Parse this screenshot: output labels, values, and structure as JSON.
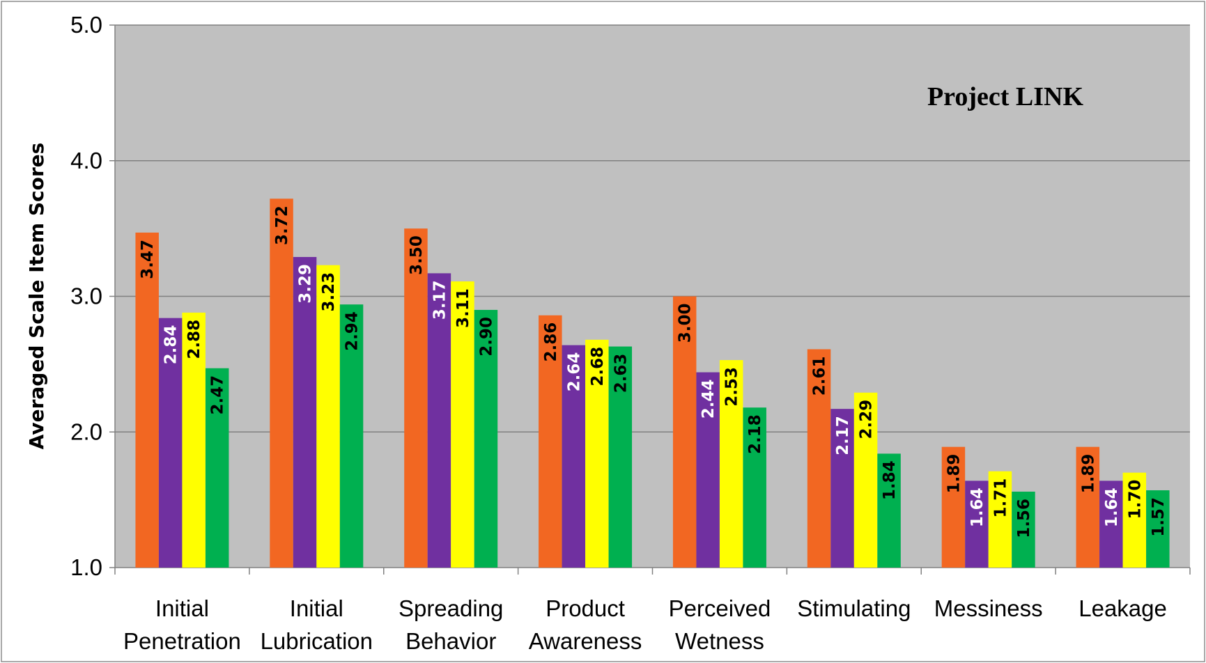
{
  "chart_data": {
    "type": "bar",
    "title": "Project LINK",
    "ylabel": "Averaged Scale Item Scores",
    "xlabel": "",
    "ylim": [
      1.0,
      5.0
    ],
    "yticks": [
      "1.0",
      "2.0",
      "3.0",
      "4.0",
      "5.0"
    ],
    "grid": true,
    "legend": "none",
    "categories": [
      [
        "Initial",
        "Penetration"
      ],
      [
        "Initial",
        "Lubrication"
      ],
      [
        "Spreading",
        "Behavior"
      ],
      [
        "Product",
        "Awareness"
      ],
      [
        "Perceived",
        "Wetness"
      ],
      [
        "Stimulating"
      ],
      [
        "Messiness"
      ],
      [
        "Leakage"
      ]
    ],
    "series": [
      {
        "color": "#F26722",
        "label_color": "#000000",
        "values": [
          3.47,
          3.72,
          3.5,
          2.86,
          3.0,
          2.61,
          1.89,
          1.89
        ],
        "labels": [
          "3.47",
          "3.72",
          "3.50",
          "2.86",
          "3.00",
          "2.61",
          "1.89",
          "1.89"
        ]
      },
      {
        "color": "#7030A0",
        "label_color": "#ffffff",
        "values": [
          2.84,
          3.29,
          3.17,
          2.64,
          2.44,
          2.17,
          1.64,
          1.64
        ],
        "labels": [
          "2.84",
          "3.29",
          "3.17",
          "2.64",
          "2.44",
          "2.17",
          "1.64",
          "1.64"
        ]
      },
      {
        "color": "#FFFF00",
        "label_color": "#000000",
        "values": [
          2.88,
          3.23,
          3.11,
          2.68,
          2.53,
          2.29,
          1.71,
          1.7
        ],
        "labels": [
          "2.88",
          "3.23",
          "3.11",
          "2.68",
          "2.53",
          "2.29",
          "1.71",
          "1.70"
        ]
      },
      {
        "color": "#00B050",
        "label_color": "#000000",
        "values": [
          2.47,
          2.94,
          2.9,
          2.63,
          2.18,
          1.84,
          1.56,
          1.57
        ],
        "labels": [
          "2.47",
          "2.94",
          "2.90",
          "2.63",
          "2.18",
          "1.84",
          "1.56",
          "1.57"
        ]
      }
    ],
    "colors": {
      "plot_background": "#C0C0C0",
      "gridline": "#808080",
      "axis": "#808080",
      "frame": "#8c8c8c"
    }
  }
}
